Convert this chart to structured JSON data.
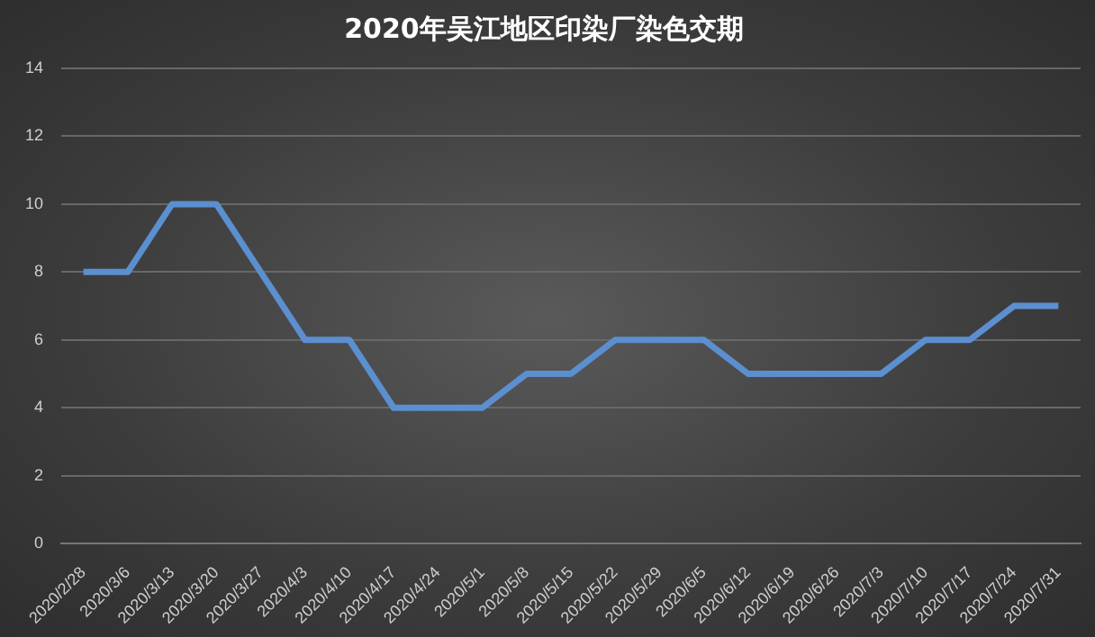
{
  "chart_data": {
    "type": "line",
    "title": "2020年吴江地区印染厂染色交期",
    "categories": [
      "2020/2/28",
      "2020/3/6",
      "2020/3/13",
      "2020/3/20",
      "2020/3/27",
      "2020/4/3",
      "2020/4/10",
      "2020/4/17",
      "2020/4/24",
      "2020/5/1",
      "2020/5/8",
      "2020/5/15",
      "2020/5/22",
      "2020/5/29",
      "2020/6/5",
      "2020/6/12",
      "2020/6/19",
      "2020/6/26",
      "2020/7/3",
      "2020/7/10",
      "2020/7/17",
      "2020/7/24",
      "2020/7/31"
    ],
    "series": [
      {
        "color": "#5b8fd0",
        "values": [
          8,
          8,
          10,
          10,
          8,
          6,
          6,
          4,
          4,
          4,
          5,
          5,
          6,
          6,
          6,
          5,
          5,
          5,
          5,
          6,
          6,
          7,
          7
        ]
      }
    ],
    "ylim": [
      0,
      14
    ],
    "yticks": [
      0,
      2,
      4,
      6,
      8,
      10,
      12,
      14
    ],
    "grid": "y",
    "legend": false,
    "marker": "none",
    "line_style": "solid"
  }
}
